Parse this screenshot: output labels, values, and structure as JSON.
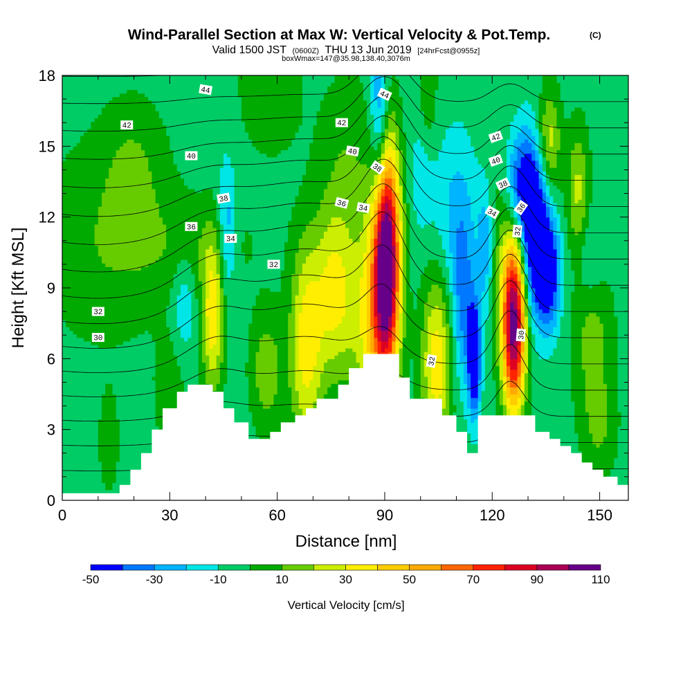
{
  "title": {
    "main": "Wind-Parallel Section at Max W: Vertical Velocity & Pot.Temp.",
    "copyright": "(C)",
    "valid_prefix": "Valid 1500 JST",
    "valid_utc": "(0600Z)",
    "valid_date": "THU 13 Jun 2019",
    "forecast": "[24hrFcst@0955z]",
    "box": "boxWmax=147@35.98,138.40,3076m"
  },
  "chart_data": {
    "type": "heatmap",
    "xlabel": "Distance [nm]",
    "ylabel": "Height [Kft MSL]",
    "xlim": [
      0,
      158
    ],
    "ylim": [
      0,
      18
    ],
    "x_ticks": [
      0,
      30,
      60,
      90,
      120,
      150
    ],
    "y_ticks": [
      0,
      3,
      6,
      9,
      12,
      15,
      18
    ],
    "grid": false,
    "colorbar": {
      "label": "Vertical Velocity [cm/s]",
      "orientation": "horizontal",
      "placement": "bottom",
      "tick_values": [
        -50,
        -30,
        -10,
        10,
        30,
        50,
        70,
        90,
        110
      ],
      "bins": [
        {
          "from": -50,
          "to": -40,
          "color": "#0000ff"
        },
        {
          "from": -40,
          "to": -30,
          "color": "#0078ff"
        },
        {
          "from": -30,
          "to": -20,
          "color": "#00b4ff"
        },
        {
          "from": -20,
          "to": -10,
          "color": "#00e6e6"
        },
        {
          "from": -10,
          "to": 0,
          "color": "#00cc66"
        },
        {
          "from": 0,
          "to": 10,
          "color": "#00aa00"
        },
        {
          "from": 10,
          "to": 20,
          "color": "#66cc00"
        },
        {
          "from": 20,
          "to": 30,
          "color": "#ccee00"
        },
        {
          "from": 30,
          "to": 40,
          "color": "#ffee00"
        },
        {
          "from": 40,
          "to": 50,
          "color": "#ffcc00"
        },
        {
          "from": 50,
          "to": 60,
          "color": "#ffaa00"
        },
        {
          "from": 60,
          "to": 70,
          "color": "#ff6600"
        },
        {
          "from": 70,
          "to": 80,
          "color": "#ff2200"
        },
        {
          "from": 80,
          "to": 90,
          "color": "#dd0022"
        },
        {
          "from": 90,
          "to": 100,
          "color": "#aa0055"
        },
        {
          "from": 100,
          "to": 110,
          "color": "#660088"
        }
      ]
    },
    "background_value": -5,
    "terrain": [
      [
        0,
        0.3
      ],
      [
        16,
        0.3
      ],
      [
        16,
        0.65
      ],
      [
        19,
        0.65
      ],
      [
        19,
        1.3
      ],
      [
        22,
        1.3
      ],
      [
        22,
        2.0
      ],
      [
        25,
        2.0
      ],
      [
        25,
        3.0
      ],
      [
        28,
        3.0
      ],
      [
        28,
        3.9
      ],
      [
        32,
        3.9
      ],
      [
        32,
        4.6
      ],
      [
        35,
        4.6
      ],
      [
        35,
        4.9
      ],
      [
        42,
        4.9
      ],
      [
        42,
        4.6
      ],
      [
        45,
        4.6
      ],
      [
        45,
        3.9
      ],
      [
        48,
        3.9
      ],
      [
        48,
        3.3
      ],
      [
        52,
        3.3
      ],
      [
        52,
        2.6
      ],
      [
        58,
        2.6
      ],
      [
        58,
        2.9
      ],
      [
        61,
        2.9
      ],
      [
        61,
        3.3
      ],
      [
        65,
        3.3
      ],
      [
        65,
        3.6
      ],
      [
        68,
        3.6
      ],
      [
        68,
        3.9
      ],
      [
        71,
        3.9
      ],
      [
        71,
        4.3
      ],
      [
        77,
        4.3
      ],
      [
        77,
        4.9
      ],
      [
        80,
        4.9
      ],
      [
        80,
        5.6
      ],
      [
        84,
        5.6
      ],
      [
        84,
        6.2
      ],
      [
        94,
        6.2
      ],
      [
        94,
        5.2
      ],
      [
        97,
        5.2
      ],
      [
        97,
        4.3
      ],
      [
        106,
        4.3
      ],
      [
        106,
        3.6
      ],
      [
        110,
        3.6
      ],
      [
        110,
        2.9
      ],
      [
        113,
        2.9
      ],
      [
        113,
        2.0
      ],
      [
        116,
        2.0
      ],
      [
        116,
        3.6
      ],
      [
        132,
        3.6
      ],
      [
        132,
        2.9
      ],
      [
        136,
        2.9
      ],
      [
        136,
        2.6
      ],
      [
        139,
        2.6
      ],
      [
        139,
        2.3
      ],
      [
        142,
        2.3
      ],
      [
        142,
        2.0
      ],
      [
        145,
        2.0
      ],
      [
        145,
        1.6
      ],
      [
        148,
        1.6
      ],
      [
        148,
        1.3
      ],
      [
        151,
        1.3
      ],
      [
        151,
        1.0
      ],
      [
        155,
        1.0
      ],
      [
        155,
        0.65
      ],
      [
        158,
        0.65
      ]
    ],
    "velocity_features": [
      {
        "x": 90.5,
        "y": 10.2,
        "sx": 2.6,
        "sy": 3.4,
        "amp": 120
      },
      {
        "x": 86.5,
        "y": 7.6,
        "sx": 4.0,
        "sy": 3.0,
        "amp": 38
      },
      {
        "x": 126,
        "y": 8.2,
        "sx": 2.4,
        "sy": 2.4,
        "amp": 95
      },
      {
        "x": 126,
        "y": 5.6,
        "sx": 2.2,
        "sy": 1.8,
        "amp": 35
      },
      {
        "x": 104.5,
        "y": 5.8,
        "sx": 3.0,
        "sy": 2.6,
        "amp": 42
      },
      {
        "x": 68,
        "y": 6.6,
        "sx": 3.2,
        "sy": 3.0,
        "amp": 40
      },
      {
        "x": 76,
        "y": 8.8,
        "sx": 4.0,
        "sy": 2.6,
        "amp": 38
      },
      {
        "x": 42,
        "y": 7.8,
        "sx": 2.2,
        "sy": 2.2,
        "amp": 42
      },
      {
        "x": 57,
        "y": 5.5,
        "sx": 3.2,
        "sy": 1.8,
        "amp": 22
      },
      {
        "x": 136,
        "y": 15.2,
        "sx": 2.2,
        "sy": 1.6,
        "amp": 30
      },
      {
        "x": 144,
        "y": 13.0,
        "sx": 2.2,
        "sy": 2.0,
        "amp": 28
      },
      {
        "x": 148,
        "y": 7.0,
        "sx": 4.0,
        "sy": 2.4,
        "amp": 20
      },
      {
        "x": 12,
        "y": 11.0,
        "sx": 13.0,
        "sy": 3.2,
        "amp": 13
      },
      {
        "x": 20,
        "y": 14.2,
        "sx": 6.0,
        "sy": 2.0,
        "amp": 12
      },
      {
        "x": 58,
        "y": 17.5,
        "sx": 6.0,
        "sy": 2.0,
        "amp": 14
      },
      {
        "x": 80,
        "y": 14.6,
        "sx": 6.0,
        "sy": 2.6,
        "amp": 13
      },
      {
        "x": 102,
        "y": 16.4,
        "sx": 2.0,
        "sy": 2.4,
        "amp": 16
      },
      {
        "x": 123,
        "y": 12.5,
        "sx": 3.2,
        "sy": 3.0,
        "amp": 14
      },
      {
        "x": 30,
        "y": 4.4,
        "sx": 3.0,
        "sy": 1.8,
        "amp": 12
      },
      {
        "x": 13,
        "y": 2.4,
        "sx": 2.0,
        "sy": 1.5,
        "amp": 12
      },
      {
        "x": 36,
        "y": 10.8,
        "sx": 14.0,
        "sy": 1.5,
        "amp": 10
      },
      {
        "x": 150,
        "y": 3.0,
        "sx": 3.5,
        "sy": 1.5,
        "amp": 14
      },
      {
        "x": 132,
        "y": 11.0,
        "sx": 2.6,
        "sy": 2.2,
        "amp": -55
      },
      {
        "x": 128,
        "y": 13.2,
        "sx": 3.5,
        "sy": 1.8,
        "amp": -45
      },
      {
        "x": 136,
        "y": 9.6,
        "sx": 2.2,
        "sy": 1.6,
        "amp": -45
      },
      {
        "x": 115,
        "y": 6.0,
        "sx": 1.2,
        "sy": 1.6,
        "amp": -58
      },
      {
        "x": 112,
        "y": 8.2,
        "sx": 2.2,
        "sy": 2.4,
        "amp": -28
      },
      {
        "x": 88.5,
        "y": 16.0,
        "sx": 1.8,
        "sy": 2.6,
        "amp": -35
      },
      {
        "x": 110,
        "y": 12.2,
        "sx": 4.0,
        "sy": 2.4,
        "amp": -18
      },
      {
        "x": 46,
        "y": 11.4,
        "sx": 1.8,
        "sy": 2.0,
        "amp": -24
      },
      {
        "x": 34,
        "y": 8.4,
        "sx": 2.2,
        "sy": 1.5,
        "amp": -16
      },
      {
        "x": 101,
        "y": 14.0,
        "sx": 2.4,
        "sy": 1.8,
        "amp": -18
      },
      {
        "x": 118,
        "y": 10.8,
        "sx": 1.5,
        "sy": 2.0,
        "amp": -22
      },
      {
        "x": 147,
        "y": 10.3,
        "sx": 3.0,
        "sy": 1.5,
        "amp": -14
      }
    ],
    "theta_field": {
      "base": 28.8,
      "lapse": 0.9,
      "bumps": [
        {
          "x": 90,
          "y": 14.0,
          "sx": 6.0,
          "sy": 5.0,
          "amp": -2.6
        },
        {
          "x": 125,
          "y": 10.0,
          "sx": 4.5,
          "sy": 5.0,
          "amp": -2.2
        },
        {
          "x": 68,
          "y": 10.0,
          "sx": 14.0,
          "sy": 4.0,
          "amp": -1.4
        },
        {
          "x": 42,
          "y": 9.0,
          "sx": 8.0,
          "sy": 4.0,
          "amp": -1.0
        },
        {
          "x": 10,
          "y": 9.0,
          "sx": 15.0,
          "sy": 4.0,
          "amp": 0.5
        }
      ],
      "contour_levels": [
        29,
        30,
        31,
        32,
        33,
        34,
        35,
        36,
        37,
        38,
        39,
        40,
        41,
        42,
        43,
        44,
        45
      ]
    },
    "contour_labels": [
      {
        "text": "44",
        "x": 40,
        "y": 17.4,
        "rot": 10
      },
      {
        "text": "44",
        "x": 90,
        "y": 17.2,
        "rot": 25
      },
      {
        "text": "42",
        "x": 18,
        "y": 15.9,
        "rot": 0
      },
      {
        "text": "42",
        "x": 78,
        "y": 16.0,
        "rot": 0
      },
      {
        "text": "42",
        "x": 121,
        "y": 15.4,
        "rot": -20
      },
      {
        "text": "40",
        "x": 36,
        "y": 14.6,
        "rot": 0
      },
      {
        "text": "40",
        "x": 81,
        "y": 14.8,
        "rot": 10
      },
      {
        "text": "40",
        "x": 121,
        "y": 14.4,
        "rot": -20
      },
      {
        "text": "38",
        "x": 45,
        "y": 12.8,
        "rot": -10
      },
      {
        "text": "38",
        "x": 88,
        "y": 14.1,
        "rot": 35
      },
      {
        "text": "38",
        "x": 123,
        "y": 13.4,
        "rot": -25
      },
      {
        "text": "36",
        "x": 36,
        "y": 11.6,
        "rot": 0
      },
      {
        "text": "36",
        "x": 78,
        "y": 12.6,
        "rot": 15
      },
      {
        "text": "36",
        "x": 128,
        "y": 12.4,
        "rot": -55
      },
      {
        "text": "34",
        "x": 47,
        "y": 11.1,
        "rot": 0
      },
      {
        "text": "34",
        "x": 84,
        "y": 12.4,
        "rot": 10
      },
      {
        "text": "34",
        "x": 120,
        "y": 12.2,
        "rot": 30
      },
      {
        "text": "32",
        "x": 59,
        "y": 10.0,
        "rot": 0
      },
      {
        "text": "32",
        "x": 10,
        "y": 8.0,
        "rot": 0
      },
      {
        "text": "32",
        "x": 103,
        "y": 5.9,
        "rot": -80
      },
      {
        "text": "32",
        "x": 127,
        "y": 11.4,
        "rot": -85
      },
      {
        "text": "30",
        "x": 10,
        "y": 6.9,
        "rot": 0
      },
      {
        "text": "30",
        "x": 128,
        "y": 7.0,
        "rot": -85
      }
    ]
  }
}
